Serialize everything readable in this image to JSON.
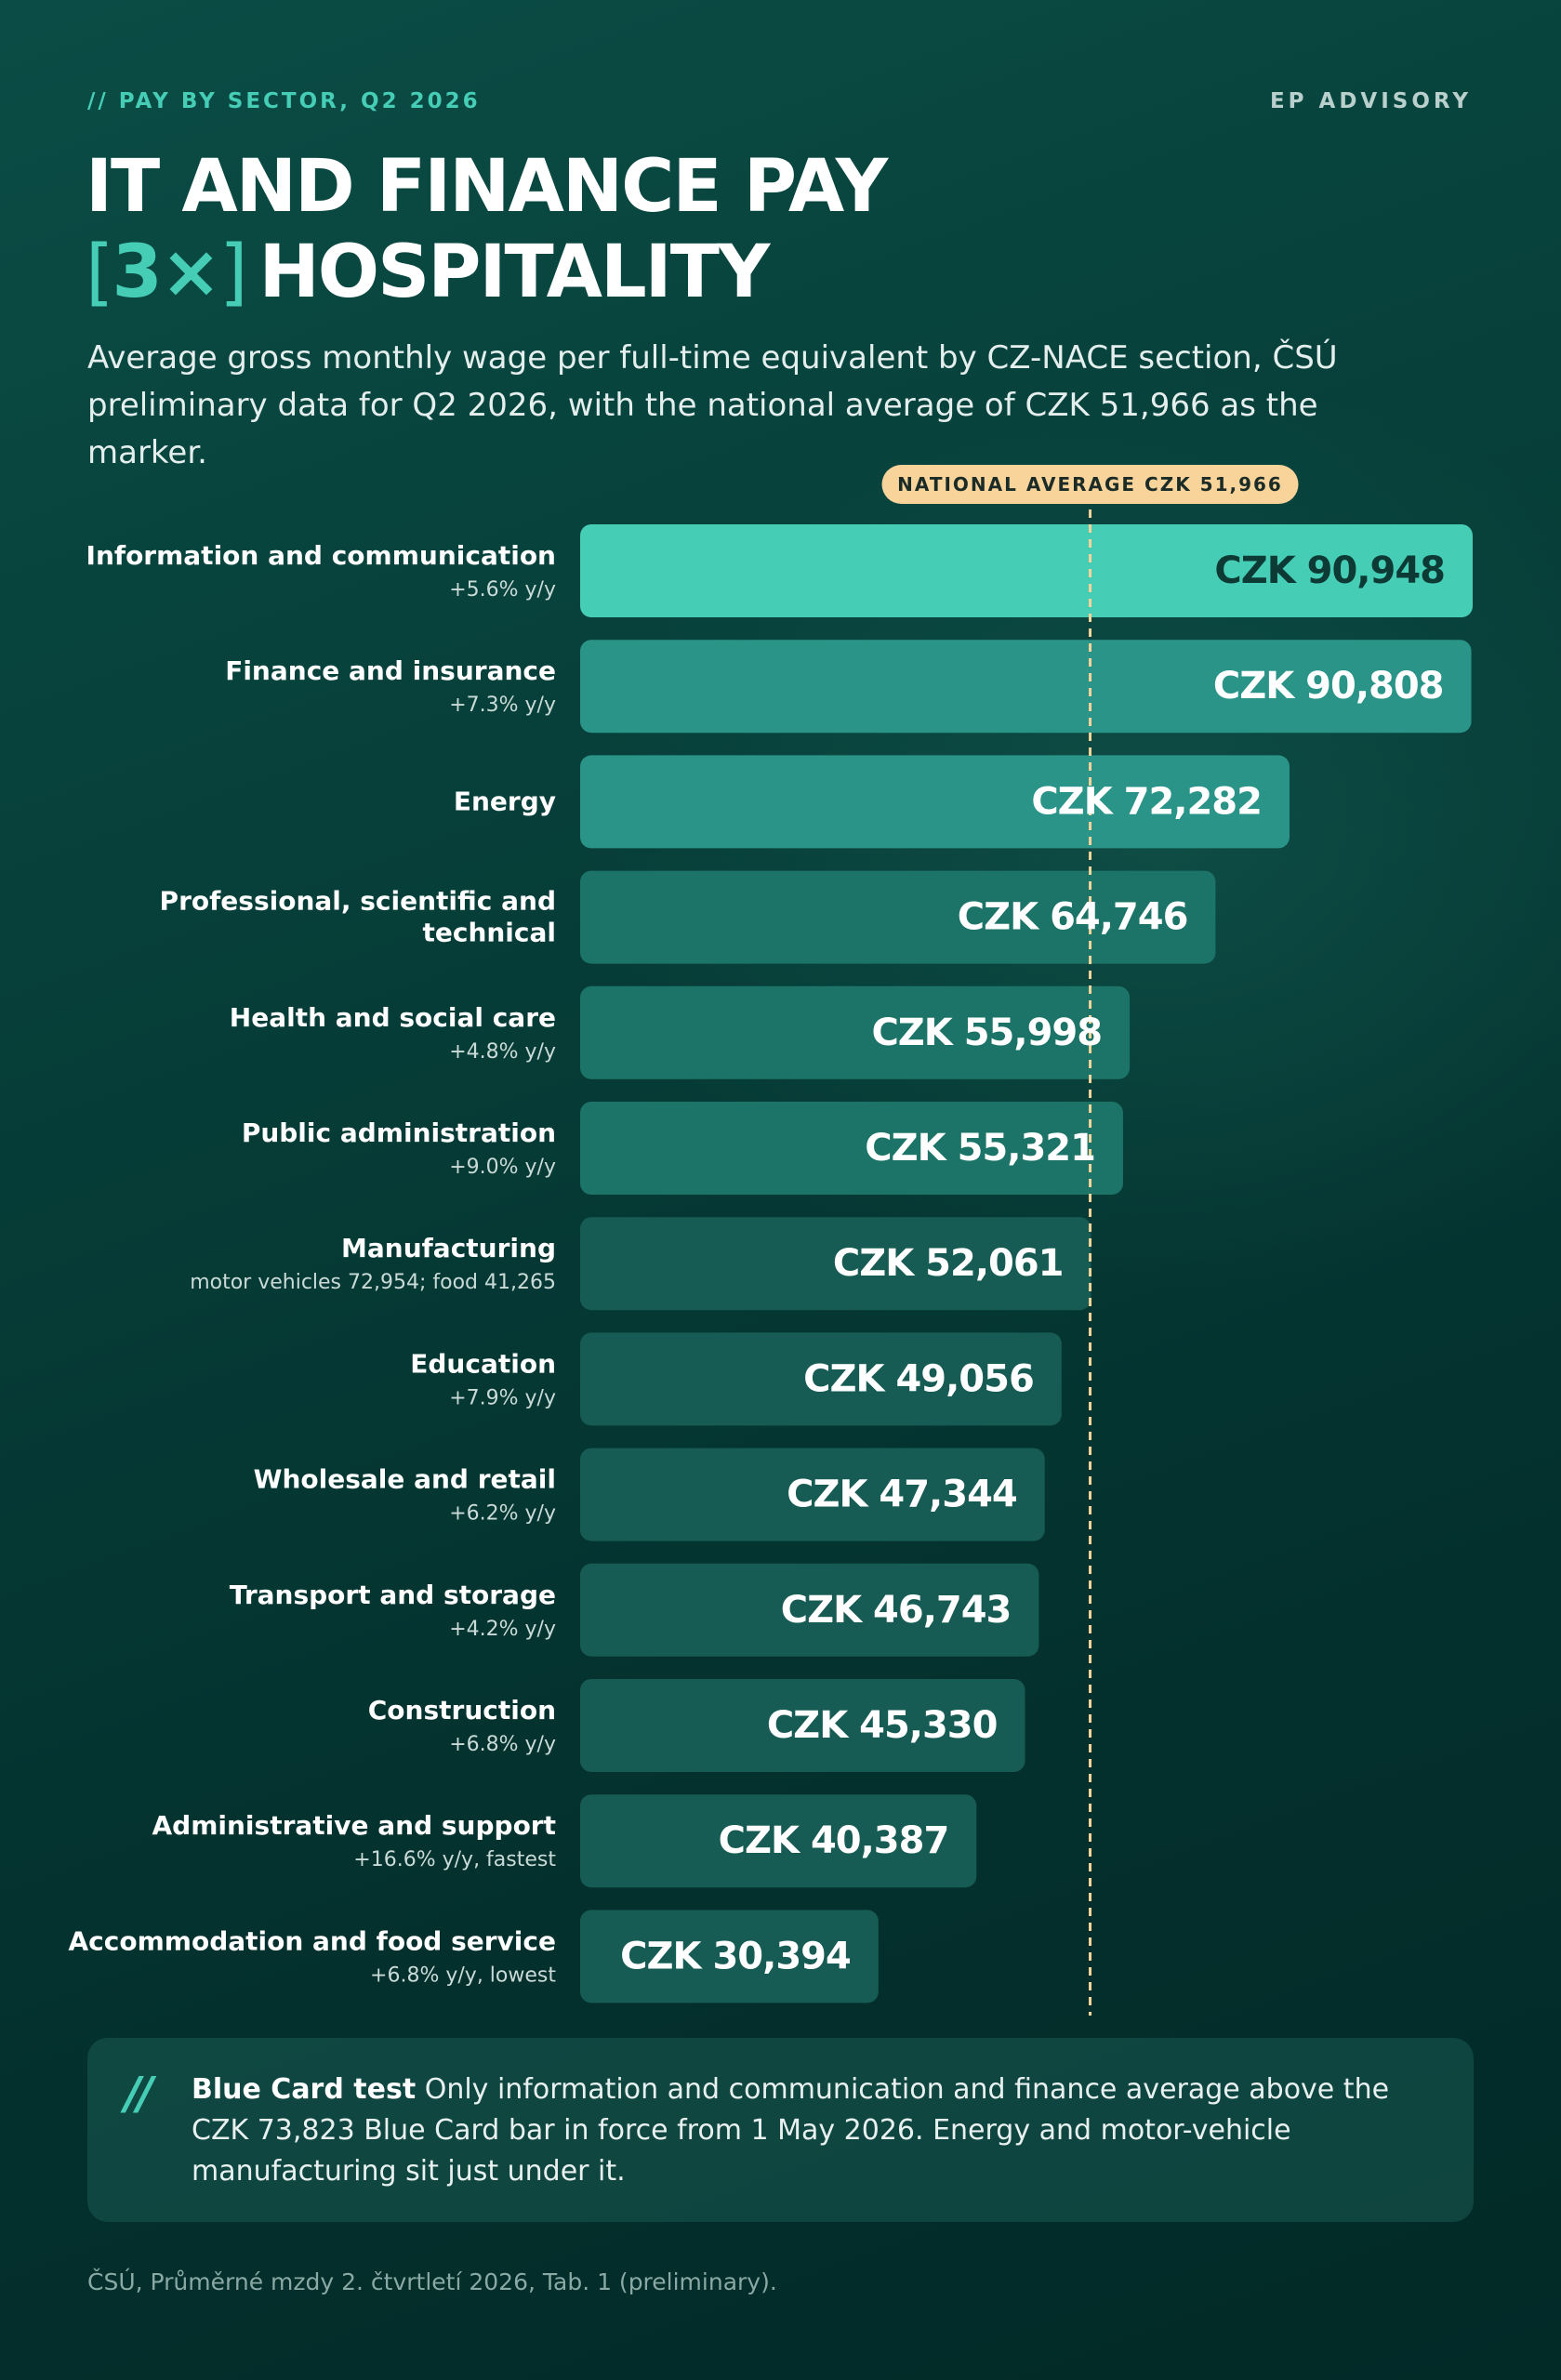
{
  "header": {
    "eyebrow": "// PAY BY SECTOR, Q2 2026",
    "brand": "EP ADVISORY",
    "title_line1": "IT AND FINANCE PAY",
    "title_highlight_open": "[",
    "title_highlight": "3×",
    "title_highlight_close": "]",
    "title_line2": "HOSPITALITY",
    "subtitle": "Average gross monthly wage per full-time equivalent by CZ-NACE section, ČSÚ preliminary data for Q2 2026, with the national average of CZK 51,966 as the marker."
  },
  "chart_data": {
    "type": "bar",
    "orientation": "horizontal",
    "categories": [
      "Information and communication",
      "Finance and insurance",
      "Energy",
      "Professional, scientific and technical",
      "Health and social care",
      "Public administration",
      "Manufacturing",
      "Education",
      "Wholesale and retail",
      "Transport and storage",
      "Construction",
      "Administrative and support",
      "Accommodation and food service"
    ],
    "notes": [
      "+5.6% y/y",
      "+7.3% y/y",
      "",
      "",
      "+4.8% y/y",
      "+9.0% y/y",
      "motor vehicles 72,954; food 41,265",
      "+7.9% y/y",
      "+6.2% y/y",
      "+4.2% y/y",
      "+6.8% y/y",
      "+16.6% y/y, fastest",
      "+6.8% y/y, lowest"
    ],
    "values": [
      90948,
      90808,
      72282,
      64746,
      55998,
      55321,
      52061,
      49056,
      47344,
      46743,
      45330,
      40387,
      30394
    ],
    "value_labels": [
      "CZK 90,948",
      "CZK 90,808",
      "CZK 72,282",
      "CZK 64,746",
      "CZK 55,998",
      "CZK 55,321",
      "CZK 52,061",
      "CZK 49,056",
      "CZK 47,344",
      "CZK 46,743",
      "CZK 45,330",
      "CZK 40,387",
      "CZK 30,394"
    ],
    "xlim": [
      0,
      90948
    ],
    "reference_line": {
      "value": 51966,
      "label": "NATIONAL AVERAGE CZK 51,966"
    },
    "colors": {
      "top": "#45cdb6",
      "high": "#2a9488",
      "mid": "#1c7468",
      "low": "#175c54",
      "marker": "#f8d49a",
      "text_dark": "#0d3a35",
      "text_light": "#ffffff"
    }
  },
  "note": {
    "mark": "//",
    "lead": "Blue Card test",
    "text": " Only information and communication and finance average above the CZK 73,823 Blue Card bar in force from 1 May 2026. Energy and motor-vehicle manufacturing sit just under it."
  },
  "source": "ČSÚ, Průměrné mzdy 2. čtvrtletí 2026, Tab. 1 (preliminary)."
}
